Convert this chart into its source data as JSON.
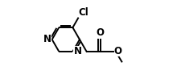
{
  "background_color": "#ffffff",
  "atom_color": "#000000",
  "bond_color": "#000000",
  "bond_lw": 1.4,
  "fig_width": 2.2,
  "fig_height": 0.98,
  "dpi": 100,
  "font_size": 8.5,
  "label_Cl": "Cl",
  "label_N1": "N",
  "label_N3": "N",
  "label_O1": "O",
  "label_O2": "O",
  "dbl_off": 0.018,
  "dbl_shrink": 0.12
}
